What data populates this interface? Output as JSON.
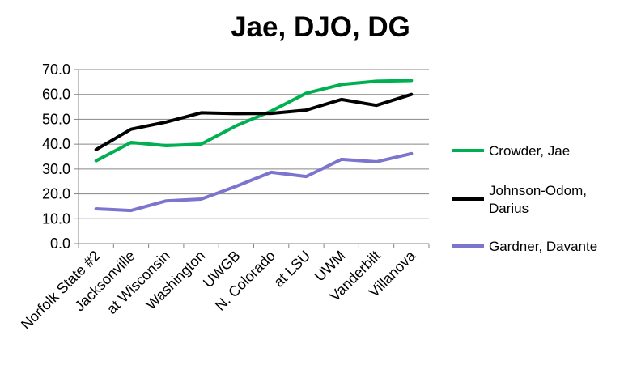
{
  "chart_data": {
    "type": "line",
    "title": "Jae, DJO, DG",
    "xlabel": "",
    "ylabel": "",
    "ylim": [
      0,
      70
    ],
    "y_ticks": [
      0.0,
      10.0,
      20.0,
      30.0,
      40.0,
      50.0,
      60.0,
      70.0
    ],
    "y_tick_labels": [
      "0.0",
      "10.0",
      "20.0",
      "30.0",
      "40.0",
      "50.0",
      "60.0",
      "70.0"
    ],
    "grid": true,
    "legend_position": "right",
    "categories": [
      "Norfolk State #2",
      "Jacksonville",
      "at Wisconsin",
      "Washington",
      "UWGB",
      "N. Colorado",
      "at LSU",
      "UWM",
      "Vanderbilt",
      "Villanova"
    ],
    "series": [
      {
        "name": "Crowder, Jae",
        "color": "#00b050",
        "values": [
          33.3,
          40.7,
          39.4,
          40.0,
          47.4,
          53.3,
          60.5,
          64.0,
          65.3,
          65.6
        ]
      },
      {
        "name": "Johnson-Odom, Darius",
        "name_lines": [
          "Johnson-Odom,",
          "Darius"
        ],
        "color": "#000000",
        "values": [
          37.8,
          46.0,
          48.9,
          52.6,
          52.3,
          52.4,
          53.7,
          58.0,
          55.6,
          60.0
        ]
      },
      {
        "name": "Gardner, Davante",
        "color": "#7b75cd",
        "values": [
          14.0,
          13.3,
          17.2,
          17.9,
          23.1,
          28.7,
          27.0,
          33.9,
          32.9,
          36.2
        ]
      }
    ]
  }
}
